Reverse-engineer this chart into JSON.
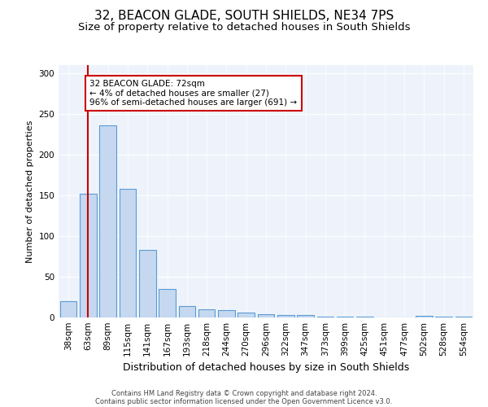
{
  "title1": "32, BEACON GLADE, SOUTH SHIELDS, NE34 7PS",
  "title2": "Size of property relative to detached houses in South Shields",
  "xlabel": "Distribution of detached houses by size in South Shields",
  "ylabel": "Number of detached properties",
  "categories": [
    "38sqm",
    "63sqm",
    "89sqm",
    "115sqm",
    "141sqm",
    "167sqm",
    "193sqm",
    "218sqm",
    "244sqm",
    "270sqm",
    "296sqm",
    "322sqm",
    "347sqm",
    "373sqm",
    "399sqm",
    "425sqm",
    "451sqm",
    "477sqm",
    "502sqm",
    "528sqm",
    "554sqm"
  ],
  "values": [
    20,
    152,
    236,
    158,
    83,
    35,
    14,
    10,
    9,
    6,
    4,
    3,
    3,
    1,
    1,
    1,
    0,
    0,
    2,
    1,
    1
  ],
  "bar_color": "#c5d8f0",
  "bar_edge_color": "#5b9bd5",
  "vline_x": 1,
  "vline_color": "#cc0000",
  "annotation_text": "32 BEACON GLADE: 72sqm\n← 4% of detached houses are smaller (27)\n96% of semi-detached houses are larger (691) →",
  "annotation_box_color": "#ffffff",
  "annotation_box_edge": "#cc0000",
  "ylim": [
    0,
    310
  ],
  "yticks": [
    0,
    50,
    100,
    150,
    200,
    250,
    300
  ],
  "bg_color": "#eef3fb",
  "footer1": "Contains HM Land Registry data © Crown copyright and database right 2024.",
  "footer2": "Contains public sector information licensed under the Open Government Licence v3.0.",
  "title1_fontsize": 11,
  "title2_fontsize": 9.5,
  "xlabel_fontsize": 9,
  "ylabel_fontsize": 8,
  "tick_fontsize": 7.5,
  "footer_fontsize": 6,
  "annot_fontsize": 7.5
}
